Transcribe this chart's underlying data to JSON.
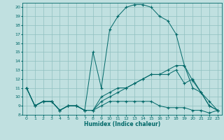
{
  "xlabel": "Humidex (Indice chaleur)",
  "background_color": "#c0e0e0",
  "line_color": "#006868",
  "grid_color": "#90c0c0",
  "xlim": [
    -0.5,
    23.5
  ],
  "ylim": [
    8,
    20.5
  ],
  "xticks": [
    0,
    1,
    2,
    3,
    4,
    5,
    6,
    7,
    8,
    9,
    10,
    11,
    12,
    13,
    14,
    15,
    16,
    17,
    18,
    19,
    20,
    21,
    22,
    23
  ],
  "yticks": [
    8,
    9,
    10,
    11,
    12,
    13,
    14,
    15,
    16,
    17,
    18,
    19,
    20
  ],
  "series": [
    {
      "x": [
        0,
        1,
        2,
        3,
        4,
        5,
        6,
        7,
        8,
        9,
        10,
        11,
        12,
        13,
        14,
        15,
        16,
        17,
        18,
        19,
        20,
        21,
        22,
        23
      ],
      "y": [
        11,
        9,
        9.5,
        9.5,
        8.5,
        9,
        9,
        8.5,
        15,
        11,
        17.5,
        19,
        20,
        20.3,
        20.3,
        20,
        19,
        18.5,
        17,
        13.5,
        11,
        10.5,
        9,
        8.5
      ]
    },
    {
      "x": [
        0,
        1,
        2,
        3,
        4,
        5,
        6,
        7,
        8,
        9,
        10,
        11,
        12,
        13,
        14,
        15,
        16,
        17,
        18,
        19,
        20,
        21,
        22,
        23
      ],
      "y": [
        11,
        9,
        9.5,
        9.5,
        8.5,
        9,
        9,
        8.5,
        8.5,
        9.5,
        10,
        10.5,
        11,
        11.5,
        12,
        12.5,
        12.5,
        13,
        13.5,
        13.5,
        11.8,
        10.5,
        9,
        8.5
      ]
    },
    {
      "x": [
        0,
        1,
        2,
        3,
        4,
        5,
        6,
        7,
        8,
        9,
        10,
        11,
        12,
        13,
        14,
        15,
        16,
        17,
        18,
        19,
        20,
        21,
        22,
        23
      ],
      "y": [
        11,
        9,
        9.5,
        9.5,
        8.5,
        9,
        9,
        8.5,
        8.5,
        9,
        9.5,
        9.5,
        9.5,
        9.5,
        9.5,
        9.5,
        9,
        8.8,
        8.8,
        8.8,
        8.5,
        8.5,
        8.2,
        8.5
      ]
    },
    {
      "x": [
        0,
        1,
        2,
        3,
        4,
        5,
        6,
        7,
        8,
        9,
        10,
        11,
        12,
        13,
        14,
        15,
        16,
        17,
        18,
        19,
        20,
        21,
        22,
        23
      ],
      "y": [
        11,
        9,
        9.5,
        9.5,
        8.5,
        9,
        9,
        8.5,
        8.5,
        10,
        10.5,
        11,
        11,
        11.5,
        12,
        12.5,
        12.5,
        12.5,
        13,
        11.5,
        12,
        10.5,
        9.5,
        8.5
      ]
    }
  ]
}
